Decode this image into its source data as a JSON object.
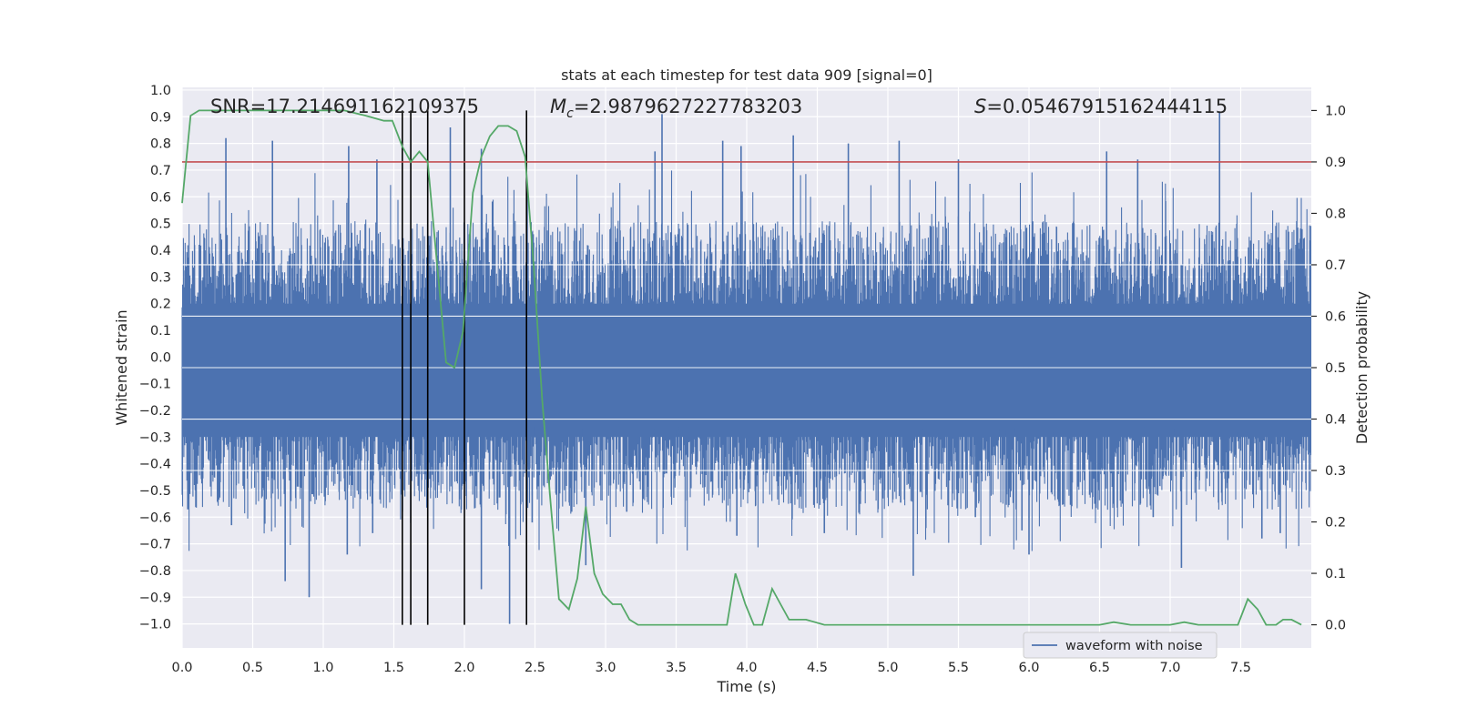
{
  "chart_data": {
    "type": "line",
    "title": "stats at each timestep for test data 909 [signal=0]",
    "xlabel": "Time (s)",
    "ylabel_left": "Whitened strain",
    "ylabel_right": "Detection probability",
    "xlim": [
      0.0,
      8.0
    ],
    "ylim_left": [
      -1.09,
      1.01
    ],
    "ylim_right": [
      -0.045,
      1.045
    ],
    "x_ticks": [
      0.0,
      0.5,
      1.0,
      1.5,
      2.0,
      2.5,
      3.0,
      3.5,
      4.0,
      4.5,
      5.0,
      5.5,
      6.0,
      6.5,
      7.0,
      7.5
    ],
    "x_tick_labels": [
      "0.0",
      "0.5",
      "1.0",
      "1.5",
      "2.0",
      "2.5",
      "3.0",
      "3.5",
      "4.0",
      "4.5",
      "5.0",
      "5.5",
      "6.0",
      "6.5",
      "7.0",
      "7.5"
    ],
    "y_left_ticks": [
      1.0,
      0.9,
      0.8,
      0.7,
      0.6,
      0.5,
      0.4,
      0.3,
      0.2,
      0.1,
      0.0,
      -0.1,
      -0.2,
      -0.3,
      -0.4,
      -0.5,
      -0.6,
      -0.7,
      -0.8,
      -0.9,
      -1.0
    ],
    "y_left_tick_labels": [
      "1.0",
      "0.9",
      "0.8",
      "0.7",
      "0.6",
      "0.5",
      "0.4",
      "0.3",
      "0.2",
      "0.1",
      "0.0",
      "−0.1",
      "−0.2",
      "−0.3",
      "−0.4",
      "−0.5",
      "−0.6",
      "−0.7",
      "−0.8",
      "−0.9",
      "−1.0"
    ],
    "y_right_ticks": [
      1.0,
      0.9,
      0.8,
      0.7,
      0.6,
      0.5,
      0.4,
      0.3,
      0.2,
      0.1,
      0.0
    ],
    "y_right_tick_labels": [
      "1.0",
      "0.9",
      "0.8",
      "0.7",
      "0.6",
      "0.5",
      "0.4",
      "0.3",
      "0.2",
      "0.1",
      "0.0"
    ],
    "annotations": {
      "snr": "SNR=17.214691162109375",
      "mc_symbol": "M",
      "mc_sub": "c",
      "mc_value": "=2.9879627227783203",
      "s_symbol": "S",
      "s_value": "=0.05467915162444115"
    },
    "legend": {
      "label": "waveform with noise",
      "location": "lower-right"
    },
    "threshold": {
      "value": 0.9,
      "axis": "right",
      "color": "#c44e52"
    },
    "vertical_markers": [
      1.56,
      1.62,
      1.74,
      2.0,
      2.44
    ],
    "waveform": {
      "name": "waveform with noise",
      "color": "#4c72b0",
      "x_range": [
        0.0,
        8.0
      ],
      "bulk_amplitude_range": [
        -0.4,
        0.4
      ],
      "spikes": [
        {
          "x": 0.31,
          "y": 0.82
        },
        {
          "x": 0.64,
          "y": 0.81
        },
        {
          "x": 1.18,
          "y": 0.79
        },
        {
          "x": 1.38,
          "y": 0.74
        },
        {
          "x": 1.9,
          "y": 0.86
        },
        {
          "x": 2.12,
          "y": 0.78
        },
        {
          "x": 3.35,
          "y": 0.77
        },
        {
          "x": 3.83,
          "y": 0.81
        },
        {
          "x": 3.96,
          "y": 0.79
        },
        {
          "x": 4.33,
          "y": 0.83
        },
        {
          "x": 4.72,
          "y": 0.8
        },
        {
          "x": 5.08,
          "y": 0.81
        },
        {
          "x": 5.5,
          "y": 0.74
        },
        {
          "x": 6.55,
          "y": 0.77
        },
        {
          "x": 6.77,
          "y": 0.74
        },
        {
          "x": 7.35,
          "y": 0.92
        },
        {
          "x": 3.4,
          "y": 0.91
        },
        {
          "x": 0.04,
          "y": -0.57
        },
        {
          "x": 0.73,
          "y": -0.84
        },
        {
          "x": 0.9,
          "y": -0.9
        },
        {
          "x": 1.17,
          "y": -0.74
        },
        {
          "x": 1.56,
          "y": -0.58
        },
        {
          "x": 2.12,
          "y": -0.87
        },
        {
          "x": 2.32,
          "y": -1.0
        },
        {
          "x": 2.86,
          "y": -0.78
        },
        {
          "x": 3.93,
          "y": -0.67
        },
        {
          "x": 5.18,
          "y": -0.82
        },
        {
          "x": 6.0,
          "y": -0.74
        },
        {
          "x": 7.08,
          "y": -0.79
        },
        {
          "x": 7.65,
          "y": -0.68
        },
        {
          "x": 7.78,
          "y": -0.66
        },
        {
          "x": 0.35,
          "y": -0.63
        },
        {
          "x": 4.55,
          "y": -0.66
        },
        {
          "x": 5.95,
          "y": -0.65
        },
        {
          "x": 6.88,
          "y": -0.6
        },
        {
          "x": 3.15,
          "y": -0.58
        },
        {
          "x": 1.35,
          "y": -0.66
        },
        {
          "x": 2.48,
          "y": -0.62
        },
        {
          "x": 2.76,
          "y": -0.58
        },
        {
          "x": 5.62,
          "y": -0.6
        }
      ]
    },
    "probability": {
      "name": "detection probability",
      "color": "#55a868",
      "x": [
        0.0,
        0.06,
        0.12,
        0.5,
        1.0,
        1.15,
        1.3,
        1.43,
        1.49,
        1.56,
        1.62,
        1.68,
        1.74,
        1.8,
        1.87,
        1.93,
        1.99,
        2.06,
        2.12,
        2.18,
        2.24,
        2.31,
        2.37,
        2.43,
        2.49,
        2.55,
        2.61,
        2.67,
        2.74,
        2.8,
        2.86,
        2.92,
        2.98,
        3.05,
        3.11,
        3.17,
        3.23,
        3.3,
        3.6,
        3.8,
        3.86,
        3.92,
        3.99,
        4.05,
        4.11,
        4.18,
        4.24,
        4.3,
        4.42,
        4.55,
        5.0,
        5.5,
        6.0,
        6.5,
        6.6,
        6.72,
        6.85,
        7.0,
        7.1,
        7.2,
        7.3,
        7.42,
        7.48,
        7.55,
        7.62,
        7.68,
        7.75,
        7.8,
        7.86,
        7.93
      ],
      "y": [
        0.82,
        0.99,
        1.0,
        1.0,
        1.0,
        1.0,
        0.99,
        0.98,
        0.98,
        0.93,
        0.9,
        0.92,
        0.9,
        0.72,
        0.51,
        0.5,
        0.57,
        0.84,
        0.91,
        0.95,
        0.97,
        0.97,
        0.96,
        0.91,
        0.7,
        0.44,
        0.24,
        0.05,
        0.03,
        0.09,
        0.23,
        0.1,
        0.06,
        0.04,
        0.04,
        0.01,
        0.0,
        0.0,
        0.0,
        0.0,
        0.0,
        0.1,
        0.04,
        0.0,
        0.0,
        0.07,
        0.04,
        0.01,
        0.01,
        0.0,
        0.0,
        0.0,
        0.0,
        0.0,
        0.005,
        0.0,
        0.0,
        0.0,
        0.005,
        0.0,
        0.0,
        0.0,
        0.0,
        0.05,
        0.03,
        0.0,
        0.0,
        0.01,
        0.01,
        0.0
      ]
    }
  }
}
